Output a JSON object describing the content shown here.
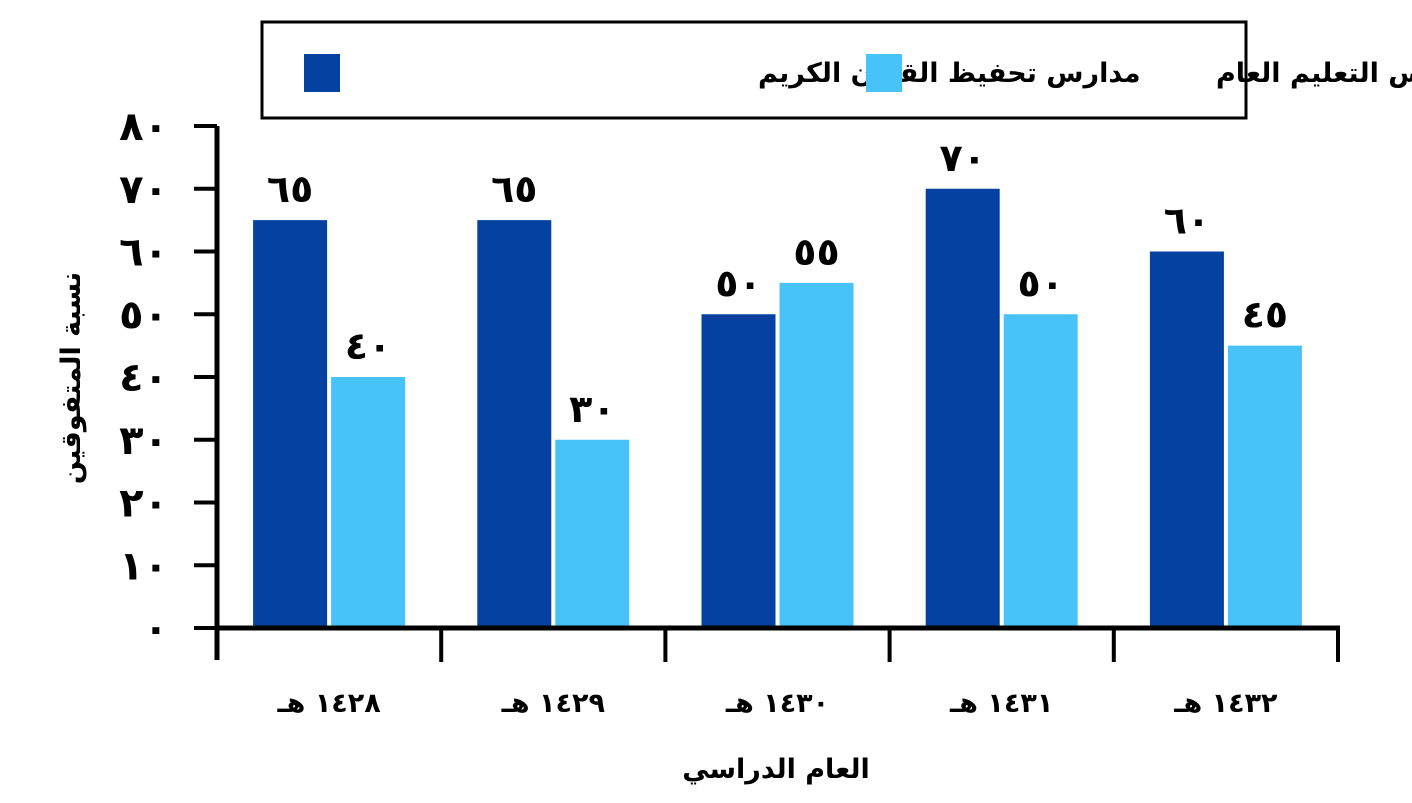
{
  "chart_data": {
    "type": "bar",
    "categories": [
      "١٤٢٨ هـ",
      "١٤٢٩ هـ",
      "١٤٣٠ هـ",
      "١٤٣١ هـ",
      "١٤٣٢ هـ"
    ],
    "series": [
      {
        "name": "مدارس تحفيظ القرآن الكريم",
        "color": "#0441a0",
        "values": [
          65,
          65,
          50,
          70,
          60
        ],
        "value_labels": [
          "٦٥",
          "٦٥",
          "٥٠",
          "٧٠",
          "٦٠"
        ]
      },
      {
        "name": "مدارس التعليم العام",
        "color": "#47c3fa",
        "values": [
          40,
          30,
          55,
          50,
          45
        ],
        "value_labels": [
          "٤٠",
          "٣٠",
          "٥٥",
          "٥٠",
          "٤٥"
        ]
      }
    ],
    "xlabel": "العام الدراسي",
    "ylabel": "نسبة المتفوقين",
    "ylim": [
      0,
      80
    ],
    "yticks": [
      0,
      10,
      20,
      30,
      40,
      50,
      60,
      70,
      80
    ],
    "ytick_labels": [
      "٠",
      "١٠",
      "٢٠",
      "٣٠",
      "٤٠",
      "٥٠",
      "٦٠",
      "٧٠",
      "٨٠"
    ],
    "grid": false,
    "legend_position": "top"
  }
}
